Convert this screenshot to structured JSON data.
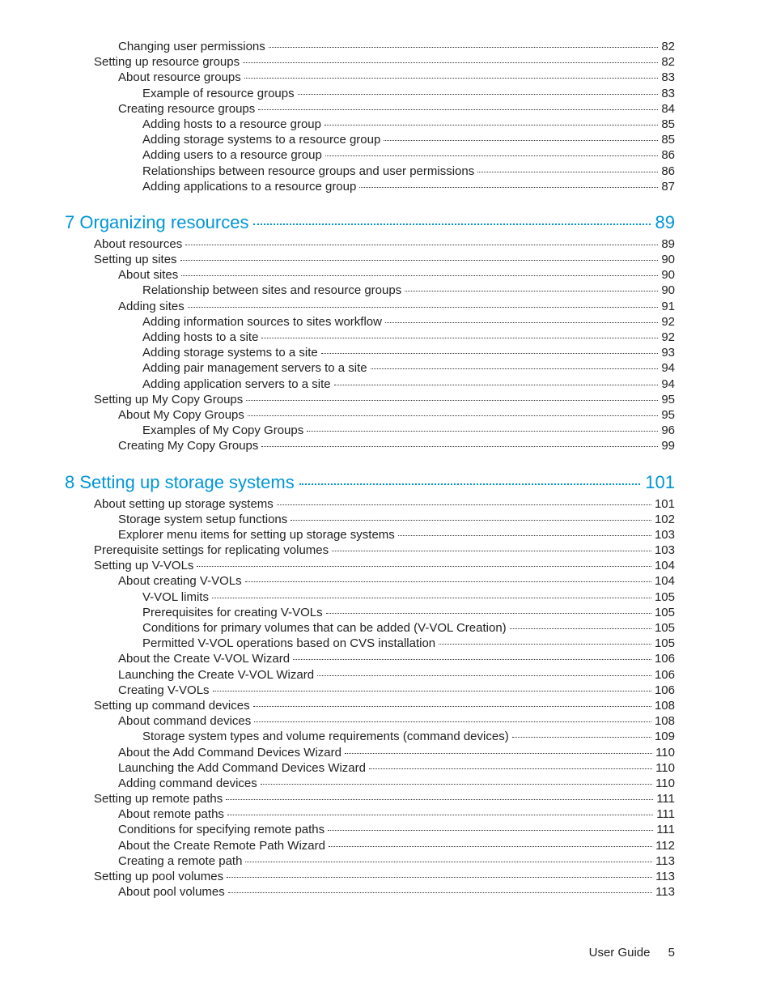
{
  "colors": {
    "chapter_color": "#0096d6",
    "text_color": "#222222",
    "background": "#ffffff"
  },
  "typography": {
    "body_fontsize_pt": 11,
    "chapter_fontsize_pt": 16,
    "font_family": "Segoe UI / Helvetica Neue (light)"
  },
  "pre_entries": [
    {
      "indent": 2,
      "label": "Changing user permissions",
      "page": "82"
    },
    {
      "indent": 1,
      "label": "Setting up resource groups",
      "page": "82"
    },
    {
      "indent": 2,
      "label": "About resource groups",
      "page": "83"
    },
    {
      "indent": 3,
      "label": "Example of resource groups",
      "page": "83"
    },
    {
      "indent": 2,
      "label": "Creating resource groups",
      "page": "84"
    },
    {
      "indent": 3,
      "label": "Adding hosts to a resource group",
      "page": "85"
    },
    {
      "indent": 3,
      "label": "Adding storage systems to a resource group",
      "page": "85"
    },
    {
      "indent": 3,
      "label": "Adding users to a resource group",
      "page": "86"
    },
    {
      "indent": 3,
      "label": "Relationships between resource groups and user permissions",
      "page": "86"
    },
    {
      "indent": 3,
      "label": "Adding applications to a resource group",
      "page": "87"
    }
  ],
  "chapter7": {
    "number": "7",
    "title": "Organizing resources",
    "page": "89",
    "entries": [
      {
        "indent": 1,
        "label": "About resources",
        "page": "89"
      },
      {
        "indent": 1,
        "label": "Setting up sites",
        "page": "90"
      },
      {
        "indent": 2,
        "label": "About sites",
        "page": "90"
      },
      {
        "indent": 3,
        "label": "Relationship between sites and resource groups",
        "page": "90"
      },
      {
        "indent": 2,
        "label": "Adding sites",
        "page": "91"
      },
      {
        "indent": 3,
        "label": "Adding information sources to sites workflow",
        "page": "92"
      },
      {
        "indent": 3,
        "label": "Adding hosts to a site",
        "page": "92"
      },
      {
        "indent": 3,
        "label": "Adding storage systems to a site",
        "page": "93"
      },
      {
        "indent": 3,
        "label": "Adding pair management servers to a site",
        "page": "94"
      },
      {
        "indent": 3,
        "label": "Adding application servers to a site",
        "page": "94"
      },
      {
        "indent": 1,
        "label": "Setting up My Copy Groups",
        "page": "95"
      },
      {
        "indent": 2,
        "label": "About My Copy Groups",
        "page": "95"
      },
      {
        "indent": 3,
        "label": "Examples of My Copy Groups",
        "page": "96"
      },
      {
        "indent": 2,
        "label": "Creating My Copy Groups",
        "page": "99"
      }
    ]
  },
  "chapter8": {
    "number": "8",
    "title": "Setting up storage systems",
    "page": "101",
    "entries": [
      {
        "indent": 1,
        "label": "About setting up storage systems",
        "page": "101"
      },
      {
        "indent": 2,
        "label": "Storage system setup functions",
        "page": "102"
      },
      {
        "indent": 2,
        "label": "Explorer menu items for setting up storage systems",
        "page": "103"
      },
      {
        "indent": 1,
        "label": "Prerequisite settings for replicating volumes",
        "page": "103"
      },
      {
        "indent": 1,
        "label": "Setting up V-VOLs",
        "page": "104"
      },
      {
        "indent": 2,
        "label": "About creating V-VOLs",
        "page": "104"
      },
      {
        "indent": 3,
        "label": "V-VOL limits",
        "page": "105"
      },
      {
        "indent": 3,
        "label": "Prerequisites for creating V-VOLs",
        "page": "105"
      },
      {
        "indent": 3,
        "label": "Conditions for primary volumes that can be added (V-VOL Creation)",
        "page": "105"
      },
      {
        "indent": 3,
        "label": "Permitted V-VOL operations based on CVS installation",
        "page": "105"
      },
      {
        "indent": 2,
        "label": "About the Create V-VOL Wizard",
        "page": "106"
      },
      {
        "indent": 2,
        "label": "Launching the Create V-VOL Wizard",
        "page": "106"
      },
      {
        "indent": 2,
        "label": "Creating V-VOLs",
        "page": "106"
      },
      {
        "indent": 1,
        "label": "Setting up command devices",
        "page": "108"
      },
      {
        "indent": 2,
        "label": "About command devices",
        "page": "108"
      },
      {
        "indent": 3,
        "label": "Storage system types and volume requirements (command devices)",
        "page": "109"
      },
      {
        "indent": 2,
        "label": "About the Add Command Devices Wizard",
        "page": "110"
      },
      {
        "indent": 2,
        "label": "Launching the Add Command Devices Wizard",
        "page": "110"
      },
      {
        "indent": 2,
        "label": "Adding command devices",
        "page": "110"
      },
      {
        "indent": 1,
        "label": "Setting up remote paths",
        "page": "111"
      },
      {
        "indent": 2,
        "label": "About remote paths",
        "page": "111"
      },
      {
        "indent": 2,
        "label": "Conditions for specifying remote paths",
        "page": "111"
      },
      {
        "indent": 2,
        "label": "About the Create Remote Path Wizard",
        "page": "112"
      },
      {
        "indent": 2,
        "label": "Creating a remote path",
        "page": "113"
      },
      {
        "indent": 1,
        "label": "Setting up pool volumes",
        "page": "113"
      },
      {
        "indent": 2,
        "label": "About pool volumes",
        "page": "113"
      }
    ]
  },
  "footer": {
    "label": "User Guide",
    "page": "5"
  }
}
